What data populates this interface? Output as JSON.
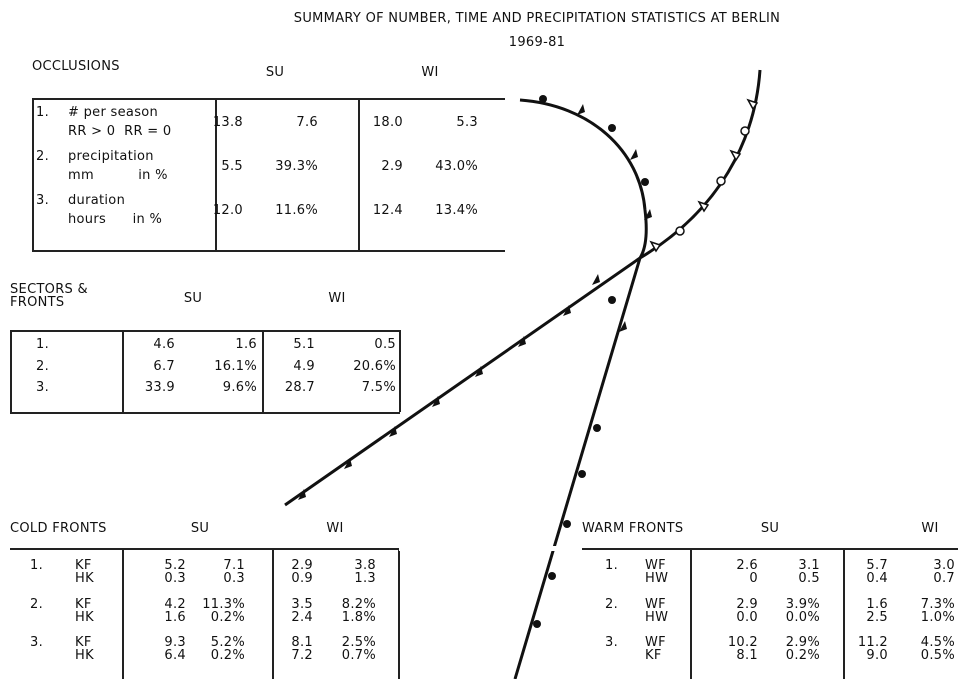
{
  "title": {
    "line1": "SUMMARY OF NUMBER, TIME AND PRECIPITATION STATISTICS AT BERLIN",
    "line2": "1969-81"
  },
  "occlusions": {
    "heading": "OCCLUSIONS",
    "columns": [
      "SU",
      "WI"
    ],
    "rows": [
      {
        "number": "1.",
        "label": [
          "# per season",
          "RR > 0  RR = 0"
        ],
        "values": [
          "13.8",
          "7.6",
          "18.0",
          "5.3"
        ]
      },
      {
        "number": "2.",
        "label": [
          "precipitation",
          "mm          in %"
        ],
        "values": [
          "5.5",
          "39.3%",
          "2.9",
          "43.0%"
        ]
      },
      {
        "number": "3.",
        "label": [
          "duration",
          "hours      in %"
        ],
        "values": [
          "12.0",
          "11.6%",
          "12.4",
          "13.4%"
        ]
      }
    ]
  },
  "sectors": {
    "heading": [
      "SECTORS &",
      "FRONTS"
    ],
    "columns": [
      "SU",
      "WI"
    ],
    "rows": [
      {
        "number": "1.",
        "values": [
          "4.6",
          "1.6",
          "5.1",
          "0.5"
        ]
      },
      {
        "number": "2.",
        "values": [
          "6.7",
          "16.1%",
          "4.9",
          "20.6%"
        ]
      },
      {
        "number": "3.",
        "values": [
          "33.9",
          "9.6%",
          "28.7",
          "7.5%"
        ]
      }
    ]
  },
  "cold_fronts": {
    "heading": "COLD FRONTS",
    "columns": [
      "SU",
      "WI"
    ],
    "rows": [
      {
        "number": "1.",
        "types": [
          "KF",
          "HK"
        ],
        "values": [
          [
            "5.2",
            "7.1",
            "2.9",
            "3.8"
          ],
          [
            "0.3",
            "0.3",
            "0.9",
            "1.3"
          ]
        ]
      },
      {
        "number": "2.",
        "types": [
          "KF",
          "HK"
        ],
        "values": [
          [
            "4.2",
            "11.3%",
            "3.5",
            "8.2%"
          ],
          [
            "1.6",
            "0.2%",
            "2.4",
            "1.8%"
          ]
        ]
      },
      {
        "number": "3.",
        "types": [
          "KF",
          "HK"
        ],
        "values": [
          [
            "9.3",
            "5.2%",
            "8.1",
            "2.5%"
          ],
          [
            "6.4",
            "0.2%",
            "7.2",
            "0.7%"
          ]
        ]
      }
    ]
  },
  "warm_fronts": {
    "heading": "WARM FRONTS",
    "columns": [
      "SU",
      "WI"
    ],
    "rows": [
      {
        "number": "1.",
        "types": [
          "WF",
          "HW"
        ],
        "values": [
          [
            "2.6",
            "3.1",
            "5.7",
            "3.0"
          ],
          [
            "0",
            "0.5",
            "0.4",
            "0.7"
          ]
        ]
      },
      {
        "number": "2.",
        "types": [
          "WF",
          "HW"
        ],
        "values": [
          [
            "2.9",
            "3.9%",
            "1.6",
            "7.3%"
          ],
          [
            "0.0",
            "0.0%",
            "2.5",
            "1.0%"
          ]
        ]
      },
      {
        "number": "3.",
        "types": [
          "WF",
          "KF"
        ],
        "values": [
          [
            "10.2",
            "2.9%",
            "11.2",
            "4.5%"
          ],
          [
            "8.1",
            "0.2%",
            "9.0",
            "0.5%"
          ]
        ]
      }
    ]
  }
}
